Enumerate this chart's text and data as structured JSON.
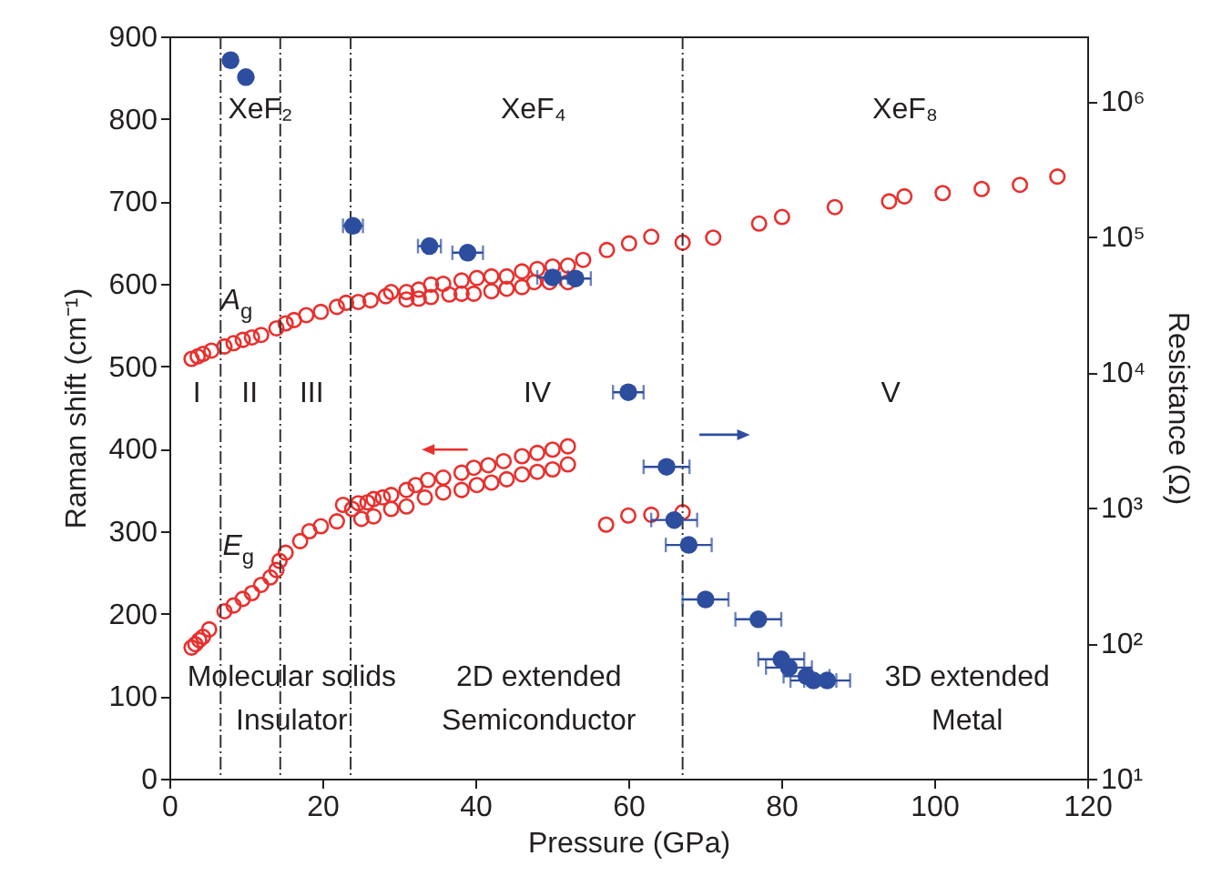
{
  "chart_data": {
    "type": "scatter",
    "xlabel": "Pressure (GPa)",
    "ylabel": "Raman shift (cm⁻¹)",
    "y2label": "Resistance (Ω)",
    "xlim": [
      0,
      120
    ],
    "xticks": [
      0,
      20,
      40,
      60,
      80,
      100,
      120
    ],
    "ylim": [
      0,
      900
    ],
    "yticks": [
      0,
      100,
      200,
      300,
      400,
      500,
      600,
      700,
      800,
      900
    ],
    "y2lim": [
      10,
      3000000
    ],
    "y2ticks": [
      {
        "value": 10,
        "label": "10¹"
      },
      {
        "value": 100,
        "label": "10²"
      },
      {
        "value": 1000,
        "label": "10³"
      },
      {
        "value": 10000,
        "label": "10⁴"
      },
      {
        "value": 100000,
        "label": "10⁵"
      },
      {
        "value": 1000000,
        "label": "10⁶"
      }
    ],
    "log": "y2",
    "marker": "circle",
    "series": [
      {
        "color": "#e8302e",
        "x": [
          2.9,
          3.7,
          4.4,
          5.5,
          7.2,
          8.4,
          9.6,
          10.8,
          12.0,
          14.0,
          15.2,
          16.3,
          17.9,
          19.8,
          21.9,
          23.1,
          24.7,
          26.3,
          28.3,
          29.0,
          31.0,
          32.6,
          34.2,
          35.8,
          38.2,
          40.2,
          42.1,
          44.1,
          46.1,
          48.1,
          50.1,
          52.1,
          54.1,
          57.2,
          60.1,
          63.0,
          67.1,
          71.1,
          77.1,
          80.1,
          87.0,
          94.1,
          96.1,
          101.1,
          106.2,
          111.2,
          116.1,
          31.0,
          32.6,
          34.2,
          36.6,
          38.2,
          39.8,
          42.1,
          44.1,
          46.1,
          47.7,
          49.7,
          52.1,
          2.9,
          3.4,
          3.9,
          4.4,
          5.2,
          7.2,
          8.4,
          9.6,
          10.8,
          12.0,
          13.2,
          14.0,
          14.4,
          15.2,
          17.1,
          18.3,
          19.8,
          21.9,
          22.7,
          23.9,
          24.7,
          25.9,
          26.7,
          27.9,
          29.0,
          31.0,
          32.2,
          33.8,
          35.8,
          38.2,
          39.8,
          41.7,
          43.7,
          46.1,
          48.1,
          50.1,
          52.1,
          25.1,
          26.7,
          29.0,
          31.0,
          33.4,
          35.8,
          38.2,
          40.2,
          42.1,
          44.1,
          46.1,
          48.1,
          50.1,
          52.1,
          57.1,
          60.0,
          63.0,
          67.1
        ],
        "values": [
          509,
          512,
          515,
          519,
          524,
          528,
          532,
          535,
          538,
          546,
          552,
          556,
          562,
          566,
          572,
          577,
          578,
          580,
          585,
          590,
          590,
          593,
          599,
          600,
          604,
          607,
          609,
          609,
          615,
          618,
          621,
          622,
          629,
          641,
          649,
          657,
          650,
          656,
          673,
          681,
          693,
          700,
          706,
          710,
          715,
          720,
          730,
          581,
          582,
          584,
          587,
          588,
          588,
          591,
          594,
          596,
          602,
          602,
          602,
          159,
          163,
          168,
          172,
          181,
          203,
          210,
          218,
          225,
          235,
          244,
          253,
          264,
          274,
          288,
          300,
          306,
          312,
          332,
          327,
          334,
          335,
          339,
          341,
          344,
          350,
          356,
          362,
          365,
          371,
          377,
          380,
          385,
          391,
          395,
          399,
          403,
          315,
          318,
          327,
          330,
          341,
          347,
          350,
          356,
          359,
          363,
          369,
          372,
          375,
          381,
          308,
          319,
          320,
          323
        ]
      },
      {
        "color": "#2d4d9f",
        "axis": "y2",
        "x": [
          8.0,
          10.0,
          24.0,
          34.0,
          39.0,
          50.1,
          53.1,
          60.0,
          65.0,
          66.0,
          67.9,
          70.1,
          77.0,
          80.0,
          81.0,
          83.3,
          84.2,
          86.0
        ],
        "values": [
          2000000,
          1500000,
          120000,
          85000,
          76000,
          50000,
          49000,
          7100,
          2000,
          810,
          530,
          210,
          150,
          76,
          66,
          57,
          53,
          53
        ],
        "xerrors": [
          null,
          null,
          1.3,
          1.5,
          2,
          2,
          2,
          2,
          3,
          3,
          3,
          3,
          3,
          3,
          3,
          3,
          3,
          3
        ]
      }
    ],
    "ref_lines": [
      {
        "axis": "x",
        "value": 6.7,
        "line_style": "dashed",
        "color": "#333333"
      },
      {
        "axis": "x",
        "value": 14.5,
        "line_style": "dashed",
        "color": "#333333"
      },
      {
        "axis": "x",
        "value": 23.7,
        "line_style": "dashed",
        "color": "#333333"
      },
      {
        "axis": "x",
        "value": 67.1,
        "line_style": "dashed",
        "color": "#333333"
      }
    ],
    "annotations": [
      "XeF₂",
      "XeF₄",
      "XeF₈",
      "I",
      "II",
      "III",
      "IV",
      "V",
      "A$_{g}$",
      "E$_{g}$",
      "Molecular solids",
      "Insulator",
      "2D extended",
      "Semiconductor",
      "3D extended",
      "Metal"
    ]
  }
}
